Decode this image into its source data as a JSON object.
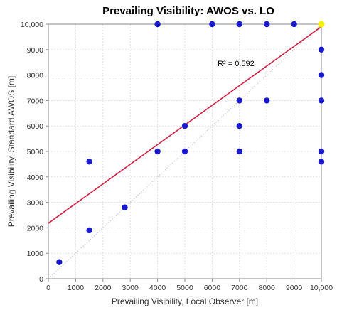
{
  "chart_data": {
    "type": "scatter",
    "title": "Prevailing Visibility: AWOS vs. LO",
    "xlabel": "Prevailing Visibility, Local Observer [m]",
    "ylabel": "Prevailing Visibility, Standard AWOS [m]",
    "xlim": [
      0,
      10000
    ],
    "ylim": [
      0,
      10000
    ],
    "xticks": [
      0,
      1000,
      2000,
      3000,
      4000,
      5000,
      6000,
      7000,
      8000,
      9000,
      10000
    ],
    "xtick_labels": [
      "0",
      "1000",
      "2000",
      "3000",
      "4000",
      "5000",
      "6000",
      "7000",
      "8000",
      "9000",
      "10,000"
    ],
    "yticks": [
      0,
      1000,
      2000,
      3000,
      4000,
      5000,
      6000,
      7000,
      8000,
      9000,
      10000
    ],
    "ytick_labels": [
      "0",
      "1000",
      "2000",
      "3000",
      "4000",
      "5000",
      "6000",
      "7000",
      "8000",
      "9000",
      "10,000"
    ],
    "grid": true,
    "points": [
      {
        "x": 400,
        "y": 650
      },
      {
        "x": 1500,
        "y": 1900
      },
      {
        "x": 1500,
        "y": 4600
      },
      {
        "x": 2800,
        "y": 2800
      },
      {
        "x": 4000,
        "y": 5000
      },
      {
        "x": 5000,
        "y": 5000
      },
      {
        "x": 5000,
        "y": 6000
      },
      {
        "x": 4000,
        "y": 10000
      },
      {
        "x": 6000,
        "y": 10000
      },
      {
        "x": 7000,
        "y": 10000
      },
      {
        "x": 8000,
        "y": 10000
      },
      {
        "x": 9000,
        "y": 10000
      },
      {
        "x": 7000,
        "y": 7000
      },
      {
        "x": 7000,
        "y": 6000
      },
      {
        "x": 7000,
        "y": 5000
      },
      {
        "x": 8000,
        "y": 7000
      },
      {
        "x": 10000,
        "y": 9000
      },
      {
        "x": 10000,
        "y": 8000
      },
      {
        "x": 10000,
        "y": 7000
      },
      {
        "x": 10000,
        "y": 5000
      },
      {
        "x": 10000,
        "y": 4600
      }
    ],
    "highlight_point": {
      "x": 10000,
      "y": 10000
    },
    "regression_line": {
      "x0": 0,
      "y0": 2180,
      "x1": 10000,
      "y1": 9900
    },
    "identity_line": {
      "x0": 0,
      "y0": 0,
      "x1": 10000,
      "y1": 10000
    },
    "annotation": {
      "text": "R² = 0.592",
      "x": 6200,
      "y": 8350
    },
    "colors": {
      "point": "#1a1acc",
      "highlight": "#f5f000",
      "regression": "#cc2244",
      "identity": "#bbbbbb"
    }
  }
}
